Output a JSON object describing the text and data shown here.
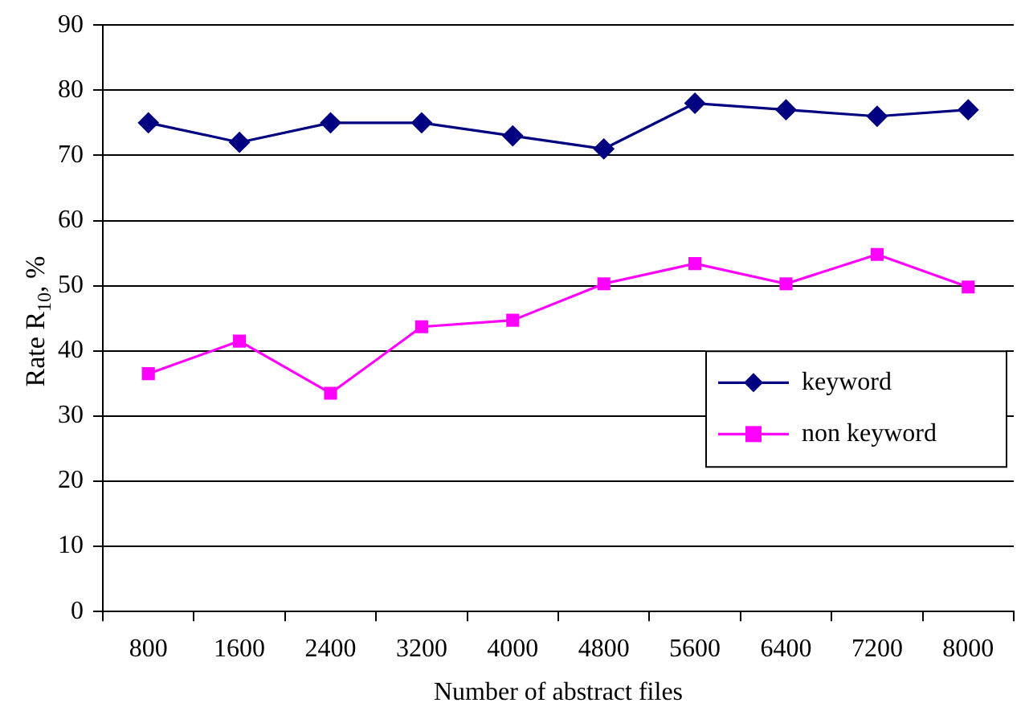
{
  "chart_data": {
    "type": "line",
    "xlabel": "Number of abstract files",
    "ylabel": "Rate R$_{10}$, %",
    "categories": [
      "800",
      "1600",
      "2400",
      "3200",
      "4000",
      "4800",
      "5600",
      "6400",
      "7200",
      "8000"
    ],
    "series": [
      {
        "name": "keyword",
        "color": "#000080",
        "marker": "diamond",
        "values": [
          75,
          72,
          75,
          75,
          73,
          71,
          78,
          77,
          76,
          77
        ]
      },
      {
        "name": "non keyword",
        "color": "#ff00ff",
        "marker": "square",
        "values": [
          36.5,
          41.5,
          33.5,
          43.7,
          44.7,
          50.3,
          53.4,
          50.3,
          54.8,
          49.8
        ]
      }
    ],
    "ylim": [
      0,
      90
    ],
    "yticks": [
      0,
      10,
      20,
      30,
      40,
      50,
      60,
      70,
      80,
      90
    ],
    "grid": "y",
    "legend": "bottom right",
    "line_style": "solid"
  }
}
